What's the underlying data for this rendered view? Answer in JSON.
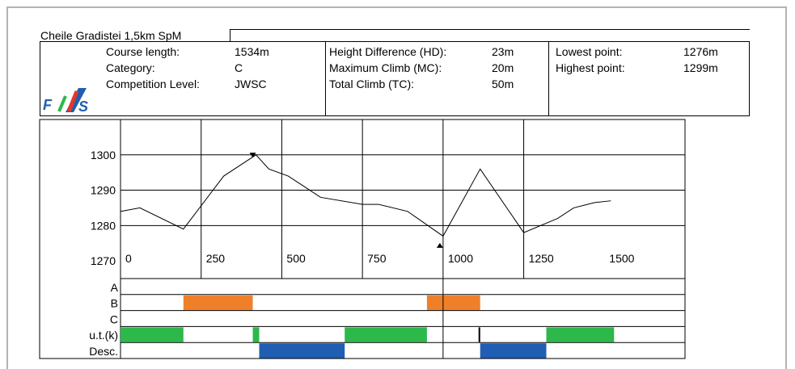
{
  "course": {
    "name": "Cheile Gradistei 1,5km SpM",
    "course_length_label": "Course length:",
    "course_length_value": "1534m",
    "category_label": "Category:",
    "category_value": "C",
    "competition_level_label": "Competition Level:",
    "competition_level_value": "JWSC",
    "height_difference_label": "Height Difference (HD):",
    "height_difference_value": "23m",
    "maximum_climb_label": "Maximum Climb (MC):",
    "maximum_climb_value": "20m",
    "total_climb_label": "Total Climb (TC):",
    "total_climb_value": "50m",
    "lowest_point_label": "Lowest point:",
    "lowest_point_value": "1276m",
    "highest_point_label": "Highest point:",
    "highest_point_value": "1299m"
  },
  "logo": {
    "letters": "F/S"
  },
  "colors": {
    "profile_line": "#000000",
    "B": "#f07f2a",
    "ut": "#2db84b",
    "Desc": "#1f5eb3",
    "grid": "#000000",
    "frame": "#b3b3b3"
  },
  "chart_data": {
    "type": "line",
    "xlim": [
      0,
      1750
    ],
    "ylim": [
      1265,
      1310
    ],
    "xticks": [
      0,
      250,
      500,
      750,
      1000,
      1250,
      1500
    ],
    "yticks": [
      1270,
      1280,
      1290,
      1300
    ],
    "xtick_labels": [
      "0",
      "250",
      "500",
      "750",
      "1000",
      "1250",
      "1500"
    ],
    "ytick_labels": [
      "1270",
      "1280",
      "1290",
      "1300"
    ],
    "series": [
      {
        "x": [
          0,
          60,
          195,
          320,
          420,
          460,
          520,
          620,
          750,
          800,
          890,
          1000,
          1115,
          1250,
          1355,
          1405,
          1470,
          1520
        ],
        "y": [
          1284,
          1285,
          1279,
          1294,
          1300,
          1296,
          1294,
          1288,
          1286,
          1286,
          1284,
          1277,
          1296,
          1278,
          1282,
          1285,
          1286.5,
          1287
        ]
      }
    ],
    "markers": [
      {
        "type": "highest",
        "x": 410,
        "y": 1299
      },
      {
        "type": "lowest",
        "x": 990,
        "y": 1276
      }
    ],
    "bar_rows": [
      {
        "label": "A",
        "segments": []
      },
      {
        "label": "B",
        "segments": [
          [
            195,
            410,
            "B"
          ],
          [
            950,
            1115,
            "B"
          ]
        ]
      },
      {
        "label": "C",
        "segments": []
      },
      {
        "label": "u.t.(k)",
        "segments": [
          [
            0,
            195,
            "ut"
          ],
          [
            410,
            430,
            "ut"
          ],
          [
            695,
            950,
            "ut"
          ],
          [
            1110,
            1115,
            "black"
          ],
          [
            1320,
            1530,
            "ut"
          ]
        ]
      },
      {
        "label": "Desc.",
        "segments": [
          [
            430,
            695,
            "Desc"
          ],
          [
            1115,
            1320,
            "Desc"
          ]
        ]
      }
    ]
  }
}
